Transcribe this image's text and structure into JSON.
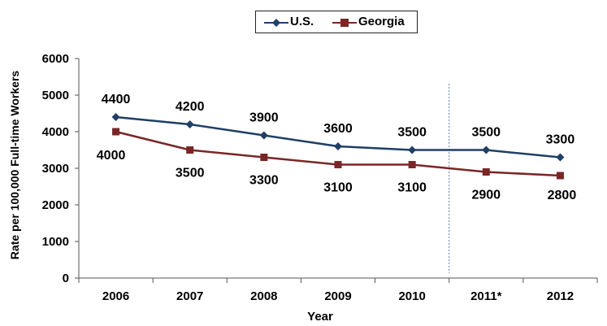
{
  "chart_data": {
    "type": "line",
    "categories": [
      "2006",
      "2007",
      "2008",
      "2009",
      "2010",
      "2011*",
      "2012"
    ],
    "series": [
      {
        "name": "U.S.",
        "color": "#1f3f66",
        "marker": "diamond",
        "values": [
          4400,
          4200,
          3900,
          3600,
          3500,
          3500,
          3300
        ],
        "labels": [
          "4400",
          "4200",
          "3900",
          "3600",
          "3500",
          "3500",
          "3300"
        ]
      },
      {
        "name": "Georgia",
        "color": "#7a2626",
        "marker": "square",
        "values": [
          4000,
          3500,
          3300,
          3100,
          3100,
          2900,
          2800
        ],
        "labels": [
          "4000",
          "3500",
          "3300",
          "3100",
          "3100",
          "2900",
          "2800"
        ]
      }
    ],
    "xlabel": "Year",
    "ylabel": "Rate per 100,000 Full-time Workers",
    "ylim": [
      0,
      6000
    ],
    "yticks": [
      "0",
      "1000",
      "2000",
      "3000",
      "4000",
      "5000",
      "6000"
    ],
    "grid": false,
    "legend_position": "top"
  }
}
